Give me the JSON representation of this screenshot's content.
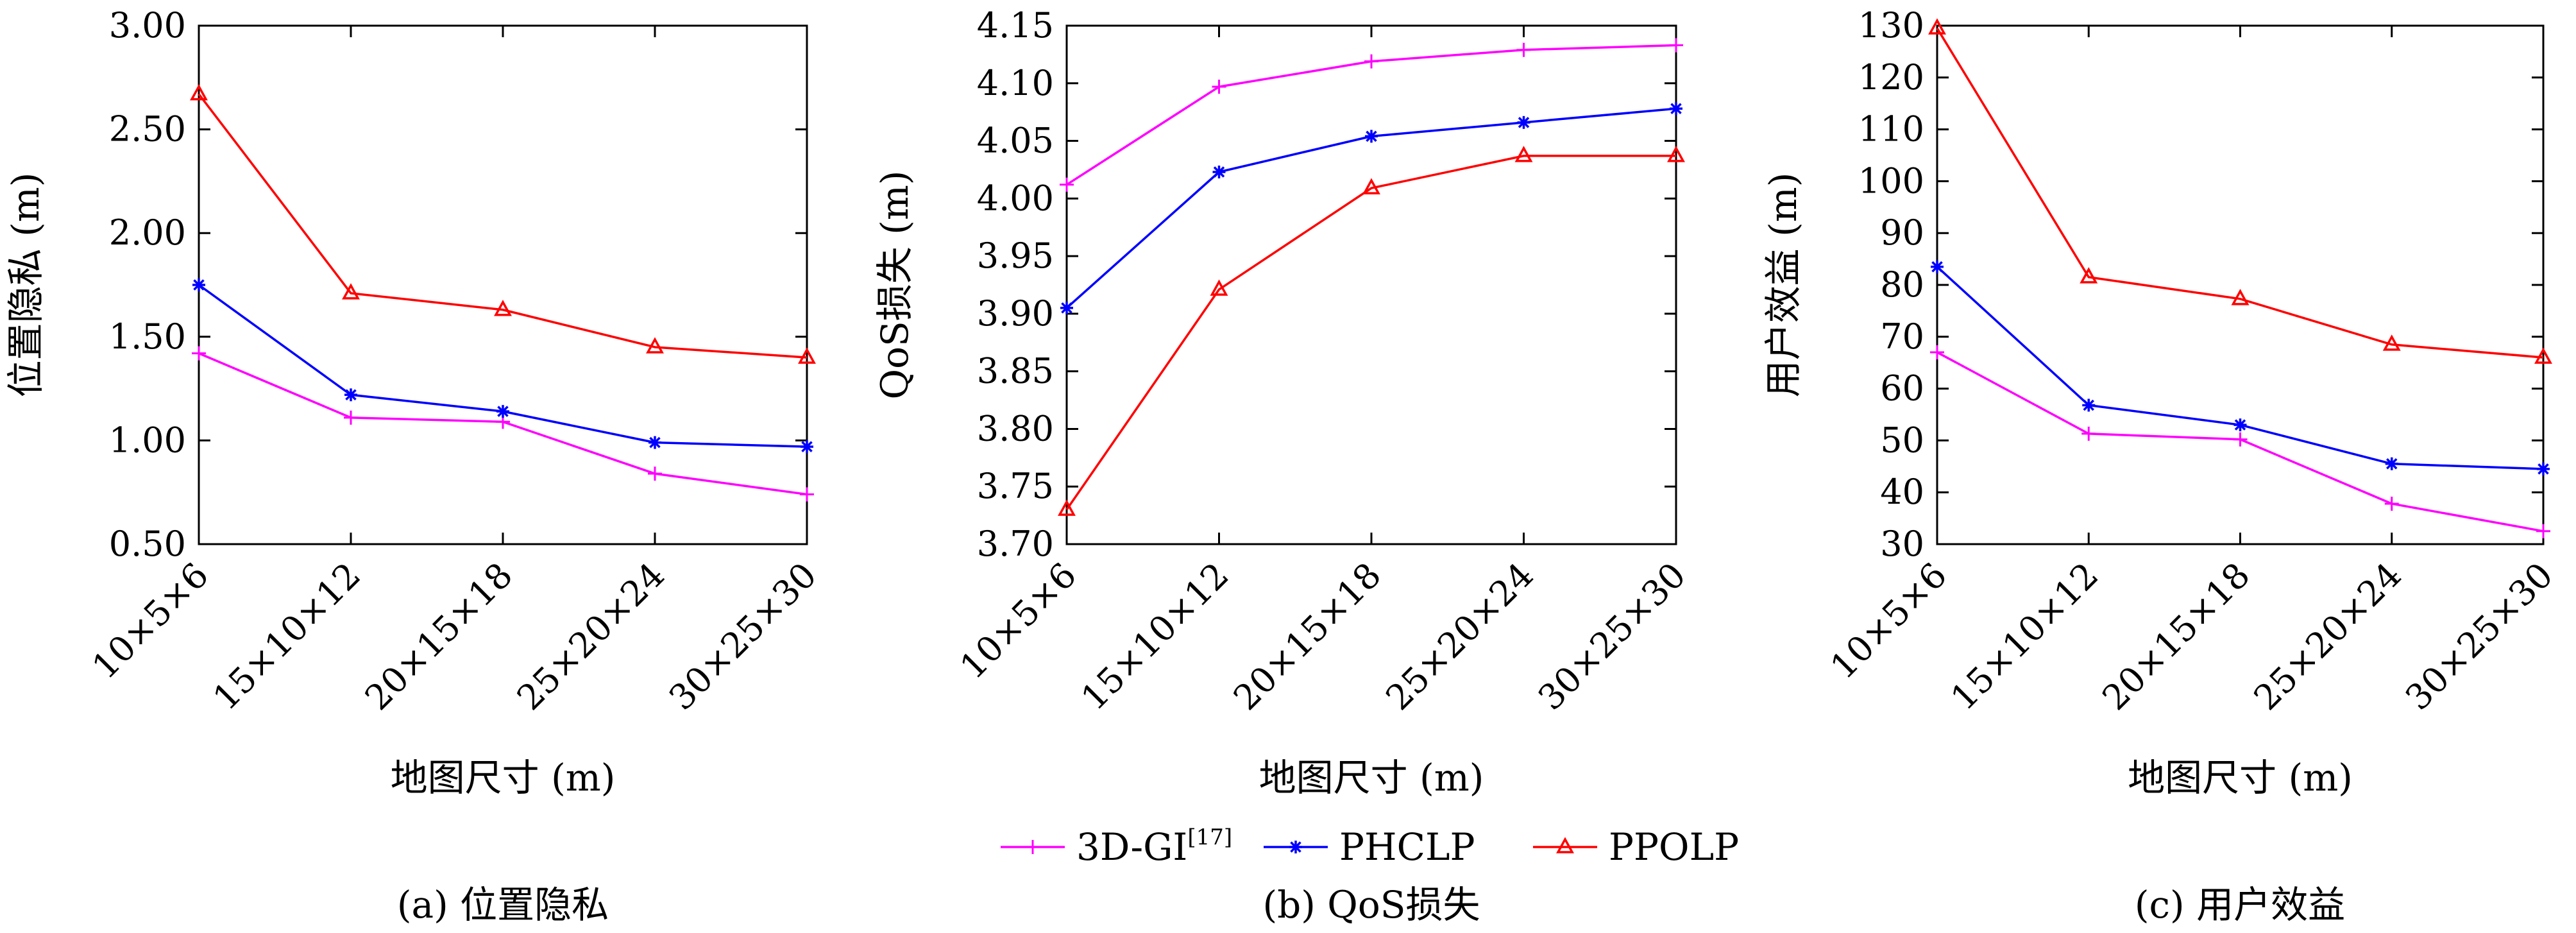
{
  "legend": {
    "placement": "bottom-center",
    "items": [
      {
        "label": "3D-GI",
        "sup": "[17]",
        "color": "#ff00ff",
        "marker": "plus"
      },
      {
        "label": "PHCLP",
        "color": "#0000ff",
        "marker": "star"
      },
      {
        "label": "PPOLP",
        "color": "#ff0000",
        "marker": "triangle"
      }
    ]
  },
  "chart_data": [
    {
      "type": "line",
      "caption": "(a) 位置隐私",
      "xlabel": "地图尺寸 (m)",
      "ylabel": "位置隐私 (m)",
      "categories": [
        "10×5×6",
        "15×10×12",
        "20×15×18",
        "25×20×24",
        "30×25×30"
      ],
      "ylim": [
        0.5,
        3.0
      ],
      "yticks": [
        "0.50",
        "1.00",
        "1.50",
        "2.00",
        "2.50",
        "3.00"
      ],
      "grid": false,
      "series": [
        {
          "name": "3D-GI",
          "values": [
            1.42,
            1.11,
            1.09,
            0.84,
            0.74
          ]
        },
        {
          "name": "PHCLP",
          "values": [
            1.75,
            1.22,
            1.14,
            0.99,
            0.97
          ]
        },
        {
          "name": "PPOLP",
          "values": [
            2.67,
            1.71,
            1.63,
            1.45,
            1.4
          ]
        }
      ]
    },
    {
      "type": "line",
      "caption": "(b) QoS损失",
      "xlabel": "地图尺寸 (m)",
      "ylabel": "QoS损失 (m)",
      "categories": [
        "10×5×6",
        "15×10×12",
        "20×15×18",
        "25×20×24",
        "30×25×30"
      ],
      "ylim": [
        3.7,
        4.15
      ],
      "yticks": [
        "3.70",
        "3.75",
        "3.80",
        "3.85",
        "3.90",
        "3.95",
        "4.00",
        "4.05",
        "4.10",
        "4.15"
      ],
      "grid": false,
      "series": [
        {
          "name": "3D-GI",
          "values": [
            4.012,
            4.097,
            4.119,
            4.129,
            4.133
          ]
        },
        {
          "name": "PHCLP",
          "values": [
            3.905,
            4.023,
            4.054,
            4.066,
            4.078
          ]
        },
        {
          "name": "PPOLP",
          "values": [
            3.73,
            3.921,
            4.009,
            4.037,
            4.037
          ]
        }
      ]
    },
    {
      "type": "line",
      "caption": "(c) 用户效益",
      "xlabel": "地图尺寸 (m)",
      "ylabel": "用户效益 (m)",
      "categories": [
        "10×5×6",
        "15×10×12",
        "20×15×18",
        "25×20×24",
        "30×25×30"
      ],
      "ylim": [
        30,
        130
      ],
      "yticks": [
        "30",
        "40",
        "50",
        "60",
        "70",
        "80",
        "90",
        "100",
        "110",
        "120",
        "130"
      ],
      "grid": false,
      "series": [
        {
          "name": "3D-GI",
          "values": [
            67,
            51.3,
            50.2,
            37.8,
            32.5
          ]
        },
        {
          "name": "PHCLP",
          "values": [
            83.5,
            56.8,
            53,
            45.5,
            44.5
          ]
        },
        {
          "name": "PPOLP",
          "values": [
            129.5,
            81.5,
            77.3,
            68.5,
            66
          ]
        }
      ]
    }
  ]
}
